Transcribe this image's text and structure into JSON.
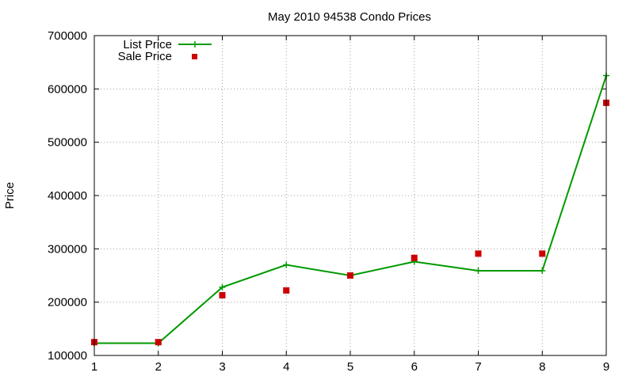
{
  "colors": {
    "list_line": "#009900",
    "sale_point": "#cc0000",
    "grid": "#a0a0a0",
    "border": "#000000"
  },
  "chart_data": {
    "type": "line",
    "title": "May 2010 94538 Condo Prices",
    "xlabel": "",
    "ylabel": "Price",
    "x": [
      1,
      2,
      3,
      4,
      5,
      6,
      7,
      8,
      9
    ],
    "xlim": [
      1,
      9
    ],
    "ylim": [
      100000,
      700000
    ],
    "xticks": [
      1,
      2,
      3,
      4,
      5,
      6,
      7,
      8,
      9
    ],
    "yticks": [
      100000,
      200000,
      300000,
      400000,
      500000,
      600000,
      700000
    ],
    "grid": true,
    "legend_position": "top-left",
    "series": [
      {
        "name": "List Price",
        "style": "line+plus",
        "values": [
          123000,
          123000,
          228000,
          270000,
          250000,
          276000,
          259000,
          259000,
          625000
        ]
      },
      {
        "name": "Sale Price",
        "style": "square-points",
        "values": [
          125000,
          125000,
          213000,
          222000,
          250000,
          283000,
          291000,
          291000,
          574000
        ]
      }
    ]
  }
}
